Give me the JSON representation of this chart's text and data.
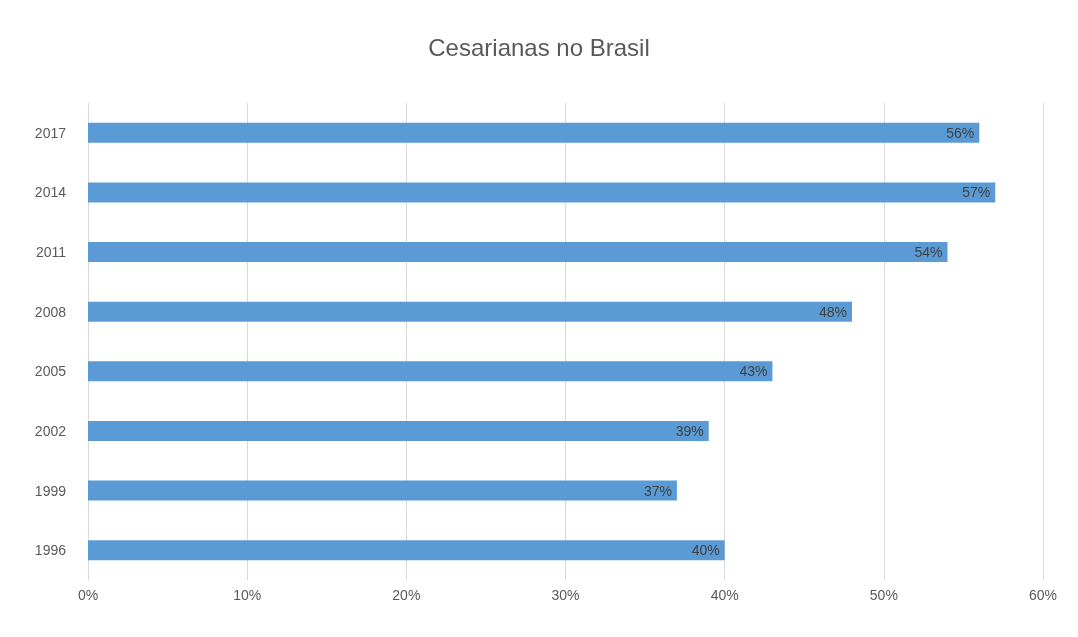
{
  "chart_data": {
    "type": "bar",
    "orientation": "horizontal",
    "title": "Cesarianas no Brasil",
    "categories": [
      "2017",
      "2014",
      "2011",
      "2008",
      "2005",
      "2002",
      "1999",
      "1996"
    ],
    "values": [
      56,
      57,
      54,
      48,
      43,
      39,
      37,
      40
    ],
    "value_labels": [
      "56%",
      "57%",
      "54%",
      "48%",
      "43%",
      "39%",
      "37%",
      "40%"
    ],
    "color": "#5b9bd5",
    "xlim": [
      0,
      60
    ],
    "xticks": [
      {
        "value": 0,
        "label": "0%"
      },
      {
        "value": 10,
        "label": "10%"
      },
      {
        "value": 20,
        "label": "20%"
      },
      {
        "value": 30,
        "label": "30%"
      },
      {
        "value": 40,
        "label": "40%"
      },
      {
        "value": 50,
        "label": "50%"
      },
      {
        "value": 60,
        "label": "60%"
      }
    ],
    "grid": "x"
  }
}
